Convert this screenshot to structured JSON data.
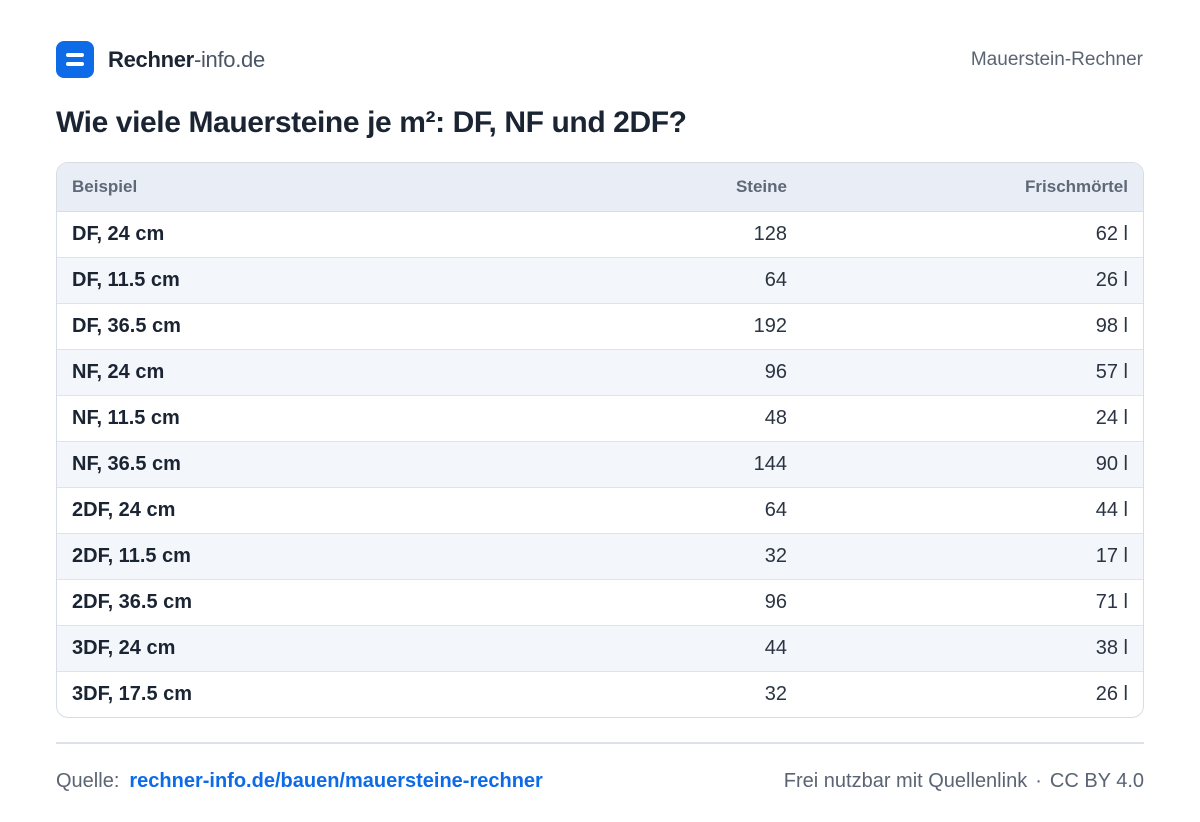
{
  "brand": {
    "name_bold": "Rechner",
    "name_rest": "-info.de",
    "icon": "calculator-logo-icon"
  },
  "header": {
    "right_label": "Mauerstein-Rechner"
  },
  "title": "Wie viele Mauersteine je m²: DF, NF und 2DF?",
  "table": {
    "columns": [
      "Beispiel",
      "Steine",
      "Frischmörtel"
    ],
    "rows": [
      [
        "DF, 24 cm",
        "128",
        "62 l"
      ],
      [
        "DF, 11.5 cm",
        "64",
        "26 l"
      ],
      [
        "DF, 36.5 cm",
        "192",
        "98 l"
      ],
      [
        "NF, 24 cm",
        "96",
        "57 l"
      ],
      [
        "NF, 11.5 cm",
        "48",
        "24 l"
      ],
      [
        "NF, 36.5 cm",
        "144",
        "90 l"
      ],
      [
        "2DF, 24 cm",
        "64",
        "44 l"
      ],
      [
        "2DF, 11.5 cm",
        "32",
        "17 l"
      ],
      [
        "2DF, 36.5 cm",
        "96",
        "71 l"
      ],
      [
        "3DF, 24 cm",
        "44",
        "38 l"
      ],
      [
        "3DF, 17.5 cm",
        "32",
        "26 l"
      ]
    ]
  },
  "footer": {
    "source_label": "Quelle:",
    "source_link": "rechner-info.de/bauen/mauersteine-rechner",
    "license_text": "Frei nutzbar mit Quellenlink",
    "separator": "·",
    "license": "CC BY 4.0"
  },
  "colors": {
    "accent": "#0d6be8",
    "text": "#1a2433",
    "muted": "#5a6473",
    "header_bg": "#e9eef6",
    "stripe": "#f3f6fa"
  }
}
